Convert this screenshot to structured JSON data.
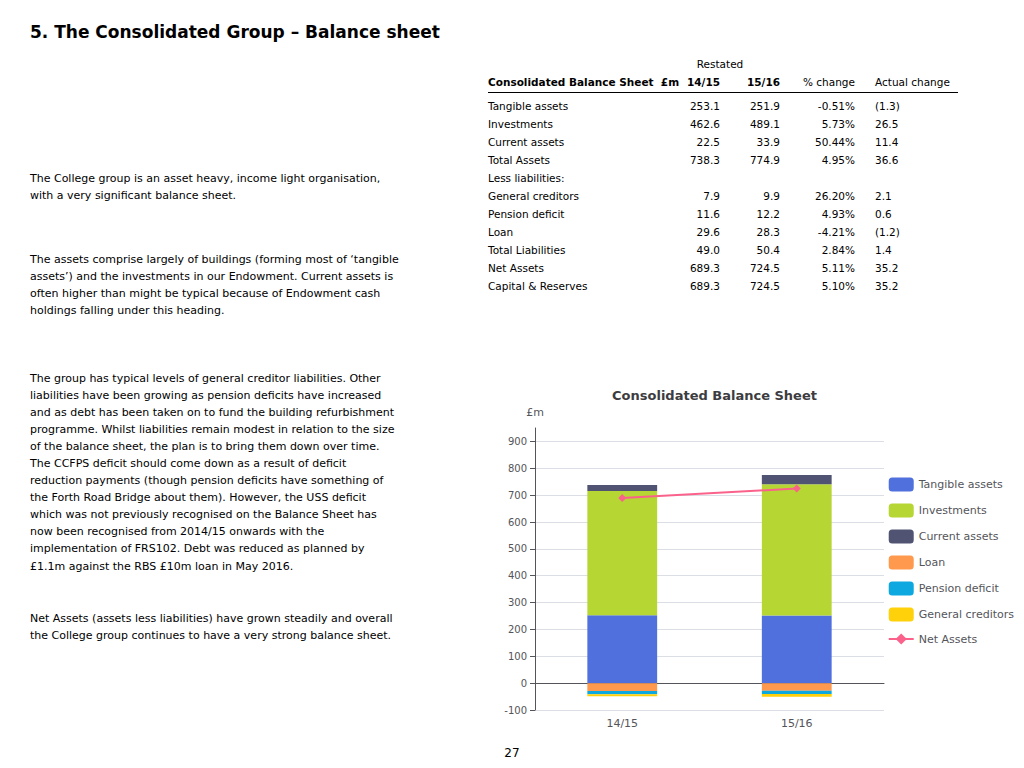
{
  "title": "5. The Consolidated Group – Balance sheet",
  "paragraphs": [
    "The College group is an asset heavy, income light organisation,\nwith a very significant balance sheet.",
    "The assets comprise largely of buildings (forming most of ‘tangible\nassets’) and the investments in our Endowment. Current assets is\noften higher than might be typical because of Endowment cash\nholdings falling under this heading.",
    "The group has typical levels of general creditor liabilities. Other\nliabilities have been growing as pension deficits have increased\nand as debt has been taken on to fund the building refurbishment\nprogramme. Whilst liabilities remain modest in relation to the size\nof the balance sheet, the plan is to bring them down over time.\nThe CCFPS deficit should come down as a result of deficit\nreduction payments (though pension deficits have something of\nthe Forth Road Bridge about them). However, the USS deficit\nwhich was not previously recognised on the Balance Sheet has\nnow been recognised from 2014/15 onwards with the\nimplementation of FRS102. Debt was reduced as planned by\n£1.1m against the RBS £10m loan in May 2016.",
    "Net Assets (assets less liabilities) have grown steadily and overall\nthe College group continues to have a very strong balance sheet."
  ],
  "page_number": "27",
  "table": {
    "header_note": "Restated",
    "columns": [
      "Consolidated Balance Sheet  £m",
      "14/15",
      "15/16",
      "% change",
      "Actual change"
    ],
    "rows": [
      [
        "Tangible assets",
        "253.1",
        "251.9",
        "-0.51%",
        "(1.3)"
      ],
      [
        "Investments",
        "462.6",
        "489.1",
        "5.73%",
        "26.5"
      ],
      [
        "Current assets",
        "22.5",
        "33.9",
        "50.44%",
        "11.4"
      ],
      [
        "Total Assets",
        "738.3",
        "774.9",
        "4.95%",
        "36.6"
      ],
      [
        "Less liabilities:"
      ],
      [
        "General creditors",
        "7.9",
        "9.9",
        "26.20%",
        "2.1"
      ],
      [
        "Pension deficit",
        "11.6",
        "12.2",
        "4.93%",
        "0.6"
      ],
      [
        "Loan",
        "29.6",
        "28.3",
        "-4.21%",
        "(1.2)"
      ],
      [
        "Total Liabilities",
        "49.0",
        "50.4",
        "2.84%",
        "1.4"
      ],
      [
        "Net Assets",
        "689.3",
        "724.5",
        "5.11%",
        "35.2"
      ],
      [
        "Capital & Reserves",
        "689.3",
        "724.5",
        "5.10%",
        "35.2"
      ]
    ]
  },
  "chart_data": {
    "type": "bar",
    "title": "Consolidated Balance Sheet",
    "ylabel": "£m",
    "categories": [
      "14/15",
      "15/16"
    ],
    "stacked": true,
    "series": [
      {
        "name": "Tangible assets",
        "values": [
          253.1,
          251.9
        ]
      },
      {
        "name": "Investments",
        "values": [
          462.6,
          489.1
        ]
      },
      {
        "name": "Current assets",
        "values": [
          22.5,
          33.9
        ]
      },
      {
        "name": "Loan",
        "values": [
          -29.6,
          -28.3
        ]
      },
      {
        "name": "Pension deficit",
        "values": [
          -11.6,
          -12.2
        ]
      },
      {
        "name": "General creditors",
        "values": [
          -7.9,
          -9.9
        ]
      },
      {
        "name": "Net Assets",
        "type": "line",
        "marker": "diamond",
        "values": [
          689.3,
          724.5
        ]
      }
    ],
    "ylim": [
      -100,
      950
    ],
    "yticks": [
      -100,
      0,
      100,
      200,
      300,
      400,
      500,
      600,
      700,
      800,
      900
    ],
    "grid": true,
    "legend": "right"
  }
}
